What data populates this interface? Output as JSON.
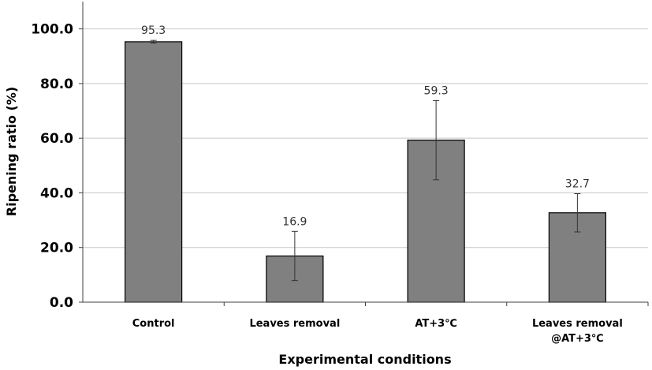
{
  "chart_data": {
    "type": "bar",
    "title": "",
    "xlabel": "Experimental conditions",
    "ylabel": "Ripening ratio (%)",
    "ylim": [
      0,
      110
    ],
    "yticks": [
      "0.0",
      "20.0",
      "40.0",
      "60.0",
      "80.0",
      "100.0"
    ],
    "grid": true,
    "categories": [
      [
        "Control"
      ],
      [
        "Leaves removal"
      ],
      [
        "AT+3℃"
      ],
      [
        "Leaves removal",
        "@AT+3℃"
      ]
    ],
    "values": [
      95.3,
      16.9,
      59.3,
      32.7
    ],
    "data_labels": [
      "95.3",
      "16.9",
      "59.3",
      "32.7"
    ],
    "error_bars": [
      0.5,
      9.0,
      14.5,
      7.0
    ],
    "colors": {
      "bar": "#808080",
      "bar_edge": "#000000",
      "grid": "#c8c8c8"
    }
  }
}
